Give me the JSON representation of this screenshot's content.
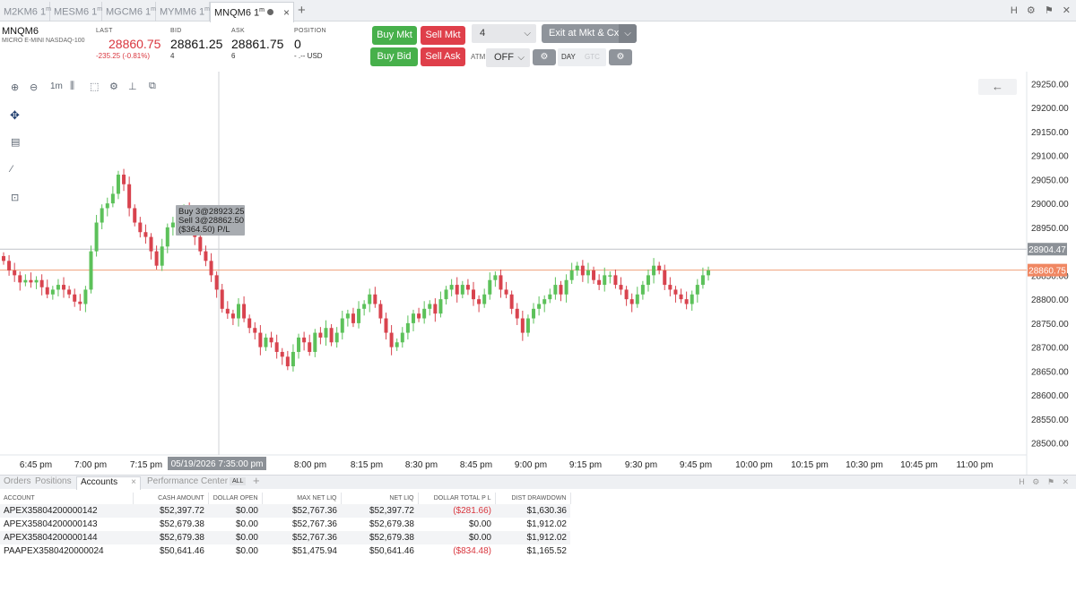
{
  "tabs": [
    {
      "label": "M2KM6 1",
      "sup": "m",
      "active": false
    },
    {
      "label": "MESM6 1",
      "sup": "m",
      "active": false
    },
    {
      "label": "MGCM6 1",
      "sup": "m",
      "active": false
    },
    {
      "label": "MYMM6 1",
      "sup": "m",
      "active": false
    },
    {
      "label": "MNQM6 1",
      "sup": "m",
      "active": true
    }
  ],
  "tabbar_right": {
    "h": "H",
    "gear": "⚙",
    "pin": "⚑",
    "close": "✕"
  },
  "quote": {
    "symbol": "MNQM6",
    "description": "MICRO E-MINI NASDAQ-100",
    "last_label": "LAST",
    "last": "28860.75",
    "change": "-235.25 (-0.81%)",
    "bid_label": "BID",
    "bid": "28861.25",
    "bid_size": "4",
    "ask_label": "ASK",
    "ask": "28861.75",
    "ask_size": "6",
    "position_label": "POSITION",
    "position": "0",
    "position_pl": "- .-- USD"
  },
  "order": {
    "buy_mkt": "Buy Mkt",
    "sell_mkt": "Sell Mkt",
    "buy_bid": "Buy Bid",
    "sell_ask": "Sell Ask",
    "qty": "4",
    "exit": "Exit at Mkt & Cxl",
    "atm_label": "ATM",
    "atm_value": "OFF",
    "day": "DAY",
    "gtc": "GTC"
  },
  "chart_toolbar": {
    "interval": "1m"
  },
  "chart_data": {
    "type": "candlestick",
    "y_ticks": [
      "29250.00",
      "29200.00",
      "29150.00",
      "29100.00",
      "29050.00",
      "29000.00",
      "28950.00",
      "28850.00",
      "28800.00",
      "28750.00",
      "28700.00",
      "28650.00",
      "28600.00",
      "28550.00",
      "28500.00"
    ],
    "x_ticks": [
      "6:45 pm",
      "7:00 pm",
      "7:15 pm",
      "8:00 pm",
      "8:15 pm",
      "8:30 pm",
      "8:45 pm",
      "9:00 pm",
      "9:15 pm",
      "9:30 pm",
      "9:45 pm",
      "10:00 pm",
      "10:15 pm",
      "10:30 pm",
      "10:45 pm",
      "11:00 pm"
    ],
    "ylim": [
      28475,
      29275
    ],
    "crosshair_price": "28904.47",
    "last_price": "28860.75",
    "crosshair_time": "05/19/2026 7:35:00 pm",
    "trade_tooltip": [
      "Buy 3@28923.25",
      "Sell 3@28862.50",
      "($364.50) P/L"
    ],
    "closes": [
      28880,
      28860,
      28850,
      28835,
      28840,
      28835,
      28840,
      28825,
      28810,
      28820,
      28830,
      28820,
      28810,
      28795,
      28790,
      28820,
      28900,
      28960,
      28990,
      29000,
      29020,
      29060,
      29040,
      28990,
      28960,
      28940,
      28930,
      28900,
      28870,
      28910,
      28950,
      28960,
      28980,
      28990,
      28950,
      28930,
      28900,
      28880,
      28850,
      28820,
      28780,
      28770,
      28760,
      28790,
      28760,
      28740,
      28730,
      28700,
      28720,
      28710,
      28690,
      28680,
      28660,
      28690,
      28720,
      28710,
      28690,
      28730,
      28720,
      28740,
      28710,
      28730,
      28760,
      28770,
      28750,
      28780,
      28790,
      28810,
      28790,
      28760,
      28730,
      28700,
      28710,
      28730,
      28750,
      28770,
      28760,
      28780,
      28790,
      28770,
      28800,
      28820,
      28830,
      28810,
      28830,
      28820,
      28800,
      28790,
      28810,
      28840,
      28850,
      28820,
      28810,
      28780,
      28760,
      28730,
      28760,
      28780,
      28790,
      28800,
      28810,
      28830,
      28810,
      28840,
      28860,
      28870,
      28850,
      28860,
      28840,
      28830,
      28850,
      28850,
      28830,
      28820,
      28800,
      28790,
      28810,
      28830,
      28850,
      28870,
      28860,
      28830,
      28820,
      28810,
      28800,
      28790,
      28810,
      28830,
      28850,
      28860
    ]
  },
  "bottom_tabs": [
    "Orders",
    "Positions",
    "Accounts",
    "Performance Center"
  ],
  "bottom_all": "ALL",
  "accounts": {
    "headers": [
      "ACCOUNT",
      "CASH AMOUNT",
      "DOLLAR OPEN",
      "MAX NET LIQ",
      "NET LIQ",
      "DOLLAR TOTAL P L",
      "DIST DRAWDOWN"
    ],
    "rows": [
      [
        "APEX35804200000142",
        "$52,397.72",
        "$0.00",
        "$52,767.36",
        "$52,397.72",
        "($281.66)",
        "$1,630.36"
      ],
      [
        "APEX35804200000143",
        "$52,679.38",
        "$0.00",
        "$52,767.36",
        "$52,679.38",
        "$0.00",
        "$1,912.02"
      ],
      [
        "APEX35804200000144",
        "$52,679.38",
        "$0.00",
        "$52,767.36",
        "$52,679.38",
        "$0.00",
        "$1,912.02"
      ],
      [
        "PAAPEX3580420000024",
        "$50,641.46",
        "$0.00",
        "$51,475.94",
        "$50,641.46",
        "($834.48)",
        "$1,165.52"
      ]
    ]
  }
}
